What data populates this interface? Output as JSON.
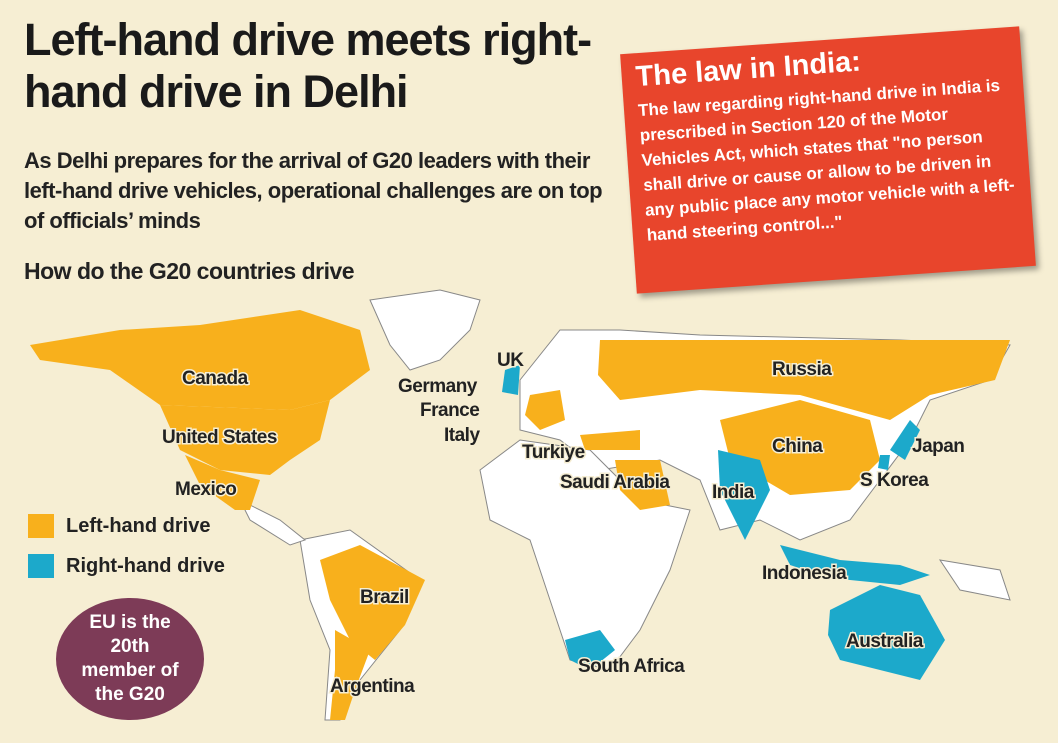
{
  "header": {
    "title": "Left-hand drive meets right-hand drive in Delhi",
    "subtitle": "As Delhi prepares for the arrival of G20 leaders with their left-hand drive vehicles, operational challenges are on top of officials’ minds",
    "section": "How do the G20 countries drive"
  },
  "note": {
    "title": "The law in India:",
    "body": "The law regarding right-hand drive in India is prescribed in Section 120 of the Motor Vehicles Act, which states that \"no person shall drive or cause or allow to be driven in any public place any motor vehicle with a left-hand steering control...\""
  },
  "legend": [
    {
      "label": "Left-hand drive",
      "color": "#f8b01c"
    },
    {
      "label": "Right-hand drive",
      "color": "#1ca9cb"
    }
  ],
  "map": {
    "left_hand_countries": [
      "Canada",
      "United States",
      "Mexico",
      "Brazil",
      "Argentina",
      "Germany",
      "France",
      "Italy",
      "Turkiye",
      "Saudi Arabia",
      "Russia",
      "China"
    ],
    "right_hand_countries": [
      "UK",
      "India",
      "Japan",
      "S Korea",
      "Indonesia",
      "Australia",
      "South Africa"
    ]
  },
  "badge": "EU is the 20th member of the G20"
}
